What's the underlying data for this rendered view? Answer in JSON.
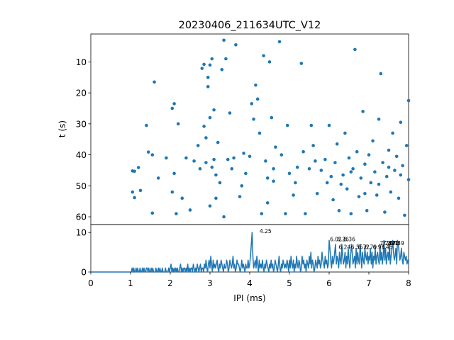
{
  "figure": {
    "title": "20230406_211634UTC_V12",
    "series_color": "#1f77b4"
  },
  "chart_data": [
    {
      "type": "scatter",
      "xlabel": "",
      "ylabel": "t (s)",
      "xlim": [
        0,
        8
      ],
      "ylim": [
        62.5,
        1
      ],
      "y_inverted": true,
      "xticks": [],
      "yticks": [
        10,
        20,
        30,
        40,
        50,
        60
      ],
      "ytick_labels": [
        "10",
        "20",
        "30",
        "40",
        "50",
        "60"
      ],
      "points": [
        [
          1.05,
          45.2
        ],
        [
          1.1,
          45.3
        ],
        [
          1.05,
          52.0
        ],
        [
          1.1,
          53.8
        ],
        [
          1.2,
          44.1
        ],
        [
          1.25,
          51.5
        ],
        [
          1.4,
          30.5
        ],
        [
          1.45,
          39.1
        ],
        [
          1.55,
          40.0
        ],
        [
          1.55,
          58.8
        ],
        [
          1.6,
          16.5
        ],
        [
          1.7,
          47.5
        ],
        [
          1.9,
          41.0
        ],
        [
          2.05,
          52.0
        ],
        [
          2.05,
          25.0
        ],
        [
          2.1,
          46.0
        ],
        [
          2.1,
          23.5
        ],
        [
          2.15,
          59.0
        ],
        [
          2.2,
          30.0
        ],
        [
          2.3,
          54.0
        ],
        [
          2.4,
          41.0
        ],
        [
          2.5,
          57.8
        ],
        [
          2.6,
          42.0
        ],
        [
          2.7,
          37.0
        ],
        [
          2.8,
          12.1
        ],
        [
          2.85,
          10.8
        ],
        [
          2.85,
          30.8
        ],
        [
          2.9,
          34.5
        ],
        [
          2.9,
          42.5
        ],
        [
          2.95,
          15.0
        ],
        [
          2.95,
          18.0
        ],
        [
          3.0,
          11.0
        ],
        [
          3.0,
          28.0
        ],
        [
          3.0,
          56.5
        ],
        [
          3.05,
          9.0
        ],
        [
          3.05,
          44.0
        ],
        [
          3.1,
          25.5
        ],
        [
          3.1,
          41.5
        ],
        [
          3.15,
          54.0
        ],
        [
          3.2,
          36.0
        ],
        [
          3.25,
          49.0
        ],
        [
          3.3,
          12.5
        ],
        [
          3.35,
          60.0
        ],
        [
          3.35,
          3.0
        ],
        [
          3.4,
          9.0
        ],
        [
          3.45,
          41.5
        ],
        [
          3.5,
          26.5
        ],
        [
          3.55,
          44.5
        ],
        [
          3.65,
          4.5
        ],
        [
          3.75,
          53.5
        ],
        [
          3.85,
          39.5
        ],
        [
          3.9,
          46.0
        ],
        [
          4.0,
          40.5
        ],
        [
          4.05,
          23.5
        ],
        [
          4.1,
          28.5
        ],
        [
          4.15,
          17.5
        ],
        [
          4.2,
          22.0
        ],
        [
          4.25,
          33.0
        ],
        [
          4.3,
          59.0
        ],
        [
          4.35,
          8.0
        ],
        [
          4.4,
          42.0
        ],
        [
          4.45,
          55.5
        ],
        [
          4.5,
          10.0
        ],
        [
          4.55,
          28.0
        ],
        [
          4.6,
          48.5
        ],
        [
          4.65,
          37.5
        ],
        [
          4.75,
          3.5
        ],
        [
          4.8,
          40.0
        ],
        [
          4.9,
          59.0
        ],
        [
          4.95,
          30.5
        ],
        [
          5.0,
          46.0
        ],
        [
          5.1,
          53.0
        ],
        [
          5.2,
          44.0
        ],
        [
          5.3,
          10.5
        ],
        [
          5.35,
          39.0
        ],
        [
          5.4,
          59.0
        ],
        [
          5.5,
          44.5
        ],
        [
          5.55,
          30.5
        ],
        [
          5.6,
          37.0
        ],
        [
          5.7,
          52.5
        ],
        [
          5.8,
          45.0
        ],
        [
          5.9,
          41.5
        ],
        [
          6.0,
          30.5
        ],
        [
          6.05,
          47.0
        ],
        [
          6.1,
          54.5
        ],
        [
          6.15,
          42.5
        ],
        [
          6.2,
          36.5
        ],
        [
          6.25,
          58.0
        ],
        [
          6.35,
          46.5
        ],
        [
          6.4,
          33.0
        ],
        [
          6.45,
          51.0
        ],
        [
          6.5,
          41.0
        ],
        [
          6.55,
          59.0
        ],
        [
          6.6,
          44.5
        ],
        [
          6.65,
          6.0
        ],
        [
          6.7,
          39.0
        ],
        [
          6.75,
          53.5
        ],
        [
          6.8,
          47.5
        ],
        [
          6.85,
          26.0
        ],
        [
          6.9,
          43.0
        ],
        [
          6.95,
          58.0
        ],
        [
          7.0,
          40.0
        ],
        [
          7.05,
          49.0
        ],
        [
          7.1,
          35.5
        ],
        [
          7.15,
          45.5
        ],
        [
          7.2,
          53.0
        ],
        [
          7.25,
          28.5
        ],
        [
          7.3,
          13.8
        ],
        [
          7.35,
          42.5
        ],
        [
          7.4,
          58.5
        ],
        [
          7.45,
          47.0
        ],
        [
          7.5,
          38.5
        ],
        [
          7.55,
          52.0
        ],
        [
          7.6,
          33.0
        ],
        [
          7.65,
          45.0
        ],
        [
          7.7,
          40.5
        ],
        [
          7.75,
          54.0
        ],
        [
          7.8,
          29.5
        ],
        [
          7.85,
          43.5
        ],
        [
          7.9,
          59.5
        ],
        [
          7.95,
          37.0
        ],
        [
          8.0,
          22.5
        ],
        [
          8.0,
          48.0
        ],
        [
          3.8,
          50.0
        ],
        [
          3.6,
          41.0
        ],
        [
          4.45,
          47.5
        ],
        [
          5.15,
          49.0
        ],
        [
          5.65,
          42.0
        ],
        [
          6.3,
          49.5
        ],
        [
          6.9,
          52.5
        ],
        [
          7.5,
          44.0
        ],
        [
          2.75,
          44.5
        ],
        [
          3.15,
          46.5
        ],
        [
          4.6,
          44.5
        ],
        [
          5.95,
          49.0
        ],
        [
          6.55,
          45.5
        ],
        [
          7.25,
          49.5
        ],
        [
          7.8,
          46.5
        ]
      ]
    },
    {
      "type": "line",
      "xlabel": "IPI (ms)",
      "ylabel": "",
      "xlim": [
        0,
        8
      ],
      "ylim": [
        0,
        12
      ],
      "xticks": [
        0,
        1,
        2,
        3,
        4,
        5,
        6,
        7,
        8
      ],
      "xtick_labels": [
        "0",
        "1",
        "2",
        "3",
        "4",
        "5",
        "6",
        "7",
        "8"
      ],
      "yticks": [
        0,
        10
      ],
      "ytick_labels": [
        "0",
        "10"
      ],
      "x_step": 0.02,
      "values": [
        0,
        0,
        0,
        0,
        0,
        0,
        0,
        0,
        0,
        0,
        0,
        0,
        0,
        0,
        0,
        0,
        0,
        0,
        0,
        0,
        0,
        0,
        0,
        0,
        0,
        0,
        0,
        0,
        0,
        0,
        0,
        0,
        0,
        0,
        0,
        0,
        0,
        0,
        0,
        0,
        0,
        0,
        0,
        0,
        0,
        0,
        0,
        0,
        0,
        0,
        0,
        0,
        1,
        0,
        1,
        0,
        0,
        1,
        0,
        1,
        0,
        0,
        1,
        0,
        0,
        1,
        0,
        1,
        0,
        0,
        1,
        1,
        0,
        1,
        0,
        0,
        1,
        0,
        1,
        0,
        0,
        0,
        1,
        0,
        0,
        1,
        0,
        1,
        0,
        0,
        1,
        0,
        0,
        0,
        1,
        0,
        0,
        0,
        1,
        0,
        1,
        2,
        0,
        1,
        0,
        1,
        0,
        1,
        0,
        1,
        0,
        0,
        1,
        2,
        0,
        1,
        0,
        1,
        1,
        0,
        1,
        0,
        2,
        0,
        1,
        0,
        1,
        1,
        0,
        2,
        1,
        0,
        1,
        0,
        2,
        1,
        0,
        1,
        2,
        0,
        1,
        1,
        0,
        2,
        1,
        3,
        1,
        0,
        2,
        3,
        1,
        4,
        2,
        0,
        3,
        1,
        2,
        1,
        2,
        3,
        1,
        0,
        2,
        1,
        3,
        2,
        1,
        0,
        2,
        1,
        1,
        3,
        2,
        0,
        1,
        3,
        2,
        1,
        2,
        4,
        1,
        2,
        0,
        1,
        3,
        2,
        2,
        1,
        0,
        1,
        3,
        1,
        2,
        1,
        0,
        2,
        1,
        1,
        3,
        1,
        2,
        4,
        7,
        10,
        4,
        1,
        2,
        3,
        1,
        4,
        2,
        0,
        3,
        1,
        2,
        1,
        3,
        1,
        0,
        2,
        1,
        3,
        2,
        1,
        0,
        2,
        1,
        3,
        1,
        2,
        0,
        1,
        3,
        2,
        1,
        0,
        2,
        4,
        1,
        0,
        2,
        1,
        3,
        2,
        1,
        2,
        1,
        3,
        2,
        0,
        3,
        1,
        4,
        2,
        1,
        3,
        0,
        2,
        1,
        4,
        2,
        1,
        3,
        2,
        0,
        1,
        4,
        2,
        3,
        1,
        2,
        0,
        3,
        2,
        1,
        4,
        2,
        5,
        1,
        3,
        2,
        0,
        1,
        3,
        2,
        1,
        4,
        2,
        3,
        1,
        2,
        5,
        3,
        2,
        1,
        4,
        2,
        3,
        1,
        2,
        8,
        6,
        3,
        1,
        4,
        2,
        3,
        5,
        7,
        2,
        4,
        3,
        1,
        5,
        3,
        2,
        7,
        4,
        2,
        3,
        5,
        1,
        4,
        2,
        6,
        3,
        1,
        4,
        7,
        5,
        2,
        3,
        4,
        1,
        6,
        2,
        5,
        3,
        2,
        7,
        4,
        1,
        5,
        3,
        2,
        6,
        4,
        3,
        5,
        2,
        4,
        3,
        6,
        2,
        5,
        1,
        4,
        3,
        6,
        2,
        4,
        5,
        3,
        2,
        7,
        3,
        5,
        2,
        4,
        8,
        3,
        6,
        2,
        4,
        5,
        3,
        7,
        2,
        4,
        6,
        8,
        5,
        3,
        4,
        6,
        2,
        8,
        7,
        5,
        3,
        4,
        6,
        3,
        2,
        5,
        4,
        3,
        4,
        2,
        3,
        2
      ],
      "annotations": [
        {
          "x": 4.25,
          "y": 10.0,
          "text": "4.25"
        },
        {
          "x": 6.02,
          "y": 8.0,
          "text": "6.02"
        },
        {
          "x": 6.2,
          "y": 8.0,
          "text": "6.26"
        },
        {
          "x": 6.36,
          "y": 8.0,
          "text": "6.36"
        },
        {
          "x": 6.24,
          "y": 6.0,
          "text": "6.24"
        },
        {
          "x": 6.55,
          "y": 6.0,
          "text": "6.55"
        },
        {
          "x": 6.72,
          "y": 6.0,
          "text": "6.72"
        },
        {
          "x": 6.9,
          "y": 6.0,
          "text": "6.79"
        },
        {
          "x": 7.1,
          "y": 6.0,
          "text": "6.95"
        },
        {
          "x": 7.28,
          "y": 7.0,
          "text": "7.28"
        },
        {
          "x": 7.35,
          "y": 7.0,
          "text": "7.39"
        },
        {
          "x": 7.45,
          "y": 7.0,
          "text": "7.41"
        },
        {
          "x": 7.5,
          "y": 7.0,
          "text": "7.47"
        },
        {
          "x": 7.59,
          "y": 7.0,
          "text": "7.59"
        },
        {
          "x": 7.3,
          "y": 6.0,
          "text": "7.45"
        }
      ]
    }
  ]
}
